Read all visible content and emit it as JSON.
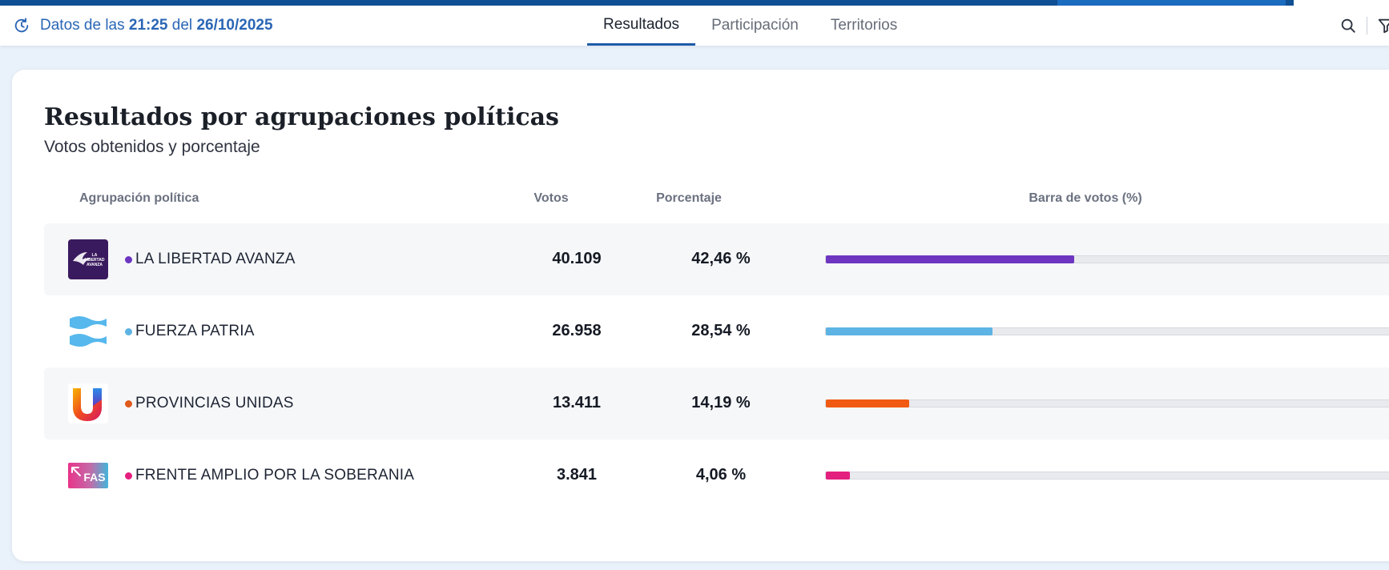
{
  "header": {
    "update_prefix": "Datos de las",
    "update_time": "21:25",
    "update_mid": "del",
    "update_date": "26/10/2025",
    "tabs": [
      "Resultados",
      "Participación",
      "Territorios"
    ],
    "active_tab": "Resultados",
    "icons": [
      "refresh-icon",
      "search-icon",
      "filter-icon"
    ]
  },
  "card": {
    "title": "Resultados por agrupaciones políticas",
    "subtitle": "Votos obtenidos y porcentaje",
    "columns": {
      "party": "Agrupación política",
      "votes": "Votos",
      "percent": "Porcentaje",
      "bar": "Barra de votos (%)"
    },
    "rows": [
      {
        "name": "LA LIBERTAD AVANZA",
        "votes": "40.109",
        "percent": "42,46 %",
        "share": 42.46,
        "color": "#6d35c0",
        "logo_text": [
          "LA",
          "LIBERTAD",
          "AVANZA"
        ]
      },
      {
        "name": "FUERZA PATRIA",
        "votes": "26.958",
        "percent": "28,54 %",
        "share": 28.54,
        "color": "#5db3e3"
      },
      {
        "name": "PROVINCIAS UNIDAS",
        "votes": "13.411",
        "percent": "14,19 %",
        "share": 14.19,
        "color": "#f05a12"
      },
      {
        "name": "FRENTE AMPLIO POR LA SOBERANIA",
        "votes": "3.841",
        "percent": "4,06 %",
        "share": 4.06,
        "color": "#e4207f",
        "logo_text": [
          "FAS"
        ]
      }
    ]
  },
  "colors": {
    "header_blue": "#0f4f93",
    "link_blue": "#2a66b5",
    "page_bg": "#e9f1fb",
    "row_shade": "#f6f7f9",
    "track": "#e9eaee"
  }
}
